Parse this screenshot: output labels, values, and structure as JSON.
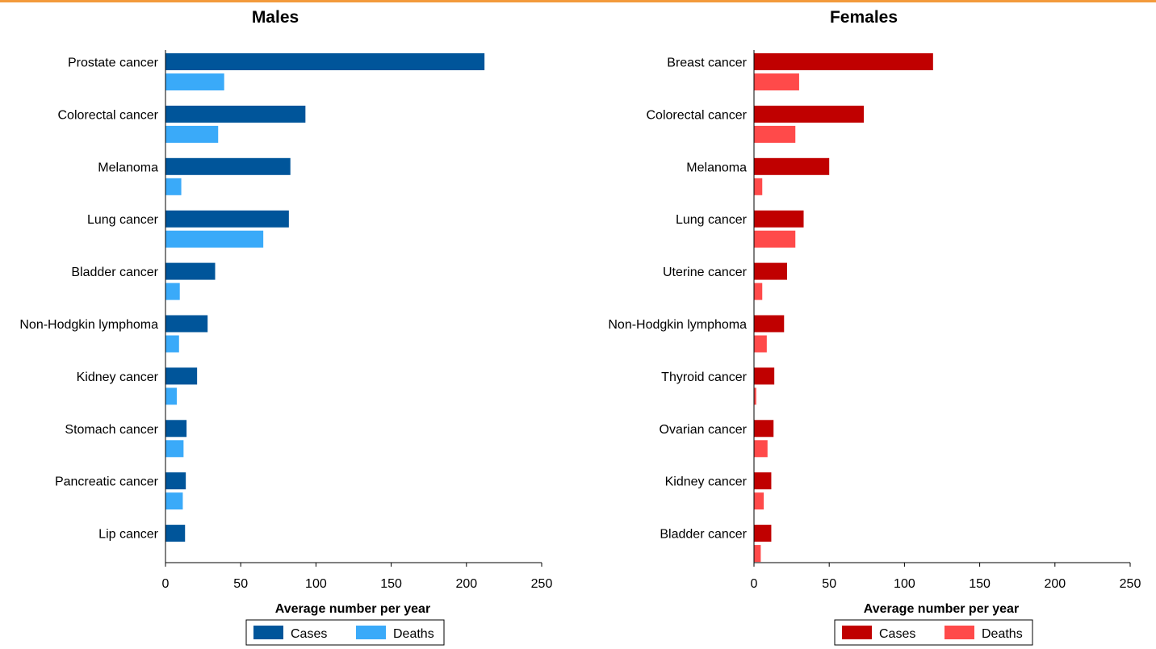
{
  "chart_data": [
    {
      "type": "bar",
      "orientation": "horizontal",
      "title": "Males",
      "xlabel": "Average number per year",
      "ylabel": "",
      "xlim": [
        0,
        250
      ],
      "xticks": [
        0,
        50,
        100,
        150,
        200,
        250
      ],
      "grid": false,
      "legend_position": "bottom",
      "categories": [
        "Prostate cancer",
        "Colorectal cancer",
        "Melanoma",
        "Lung cancer",
        "Bladder cancer",
        "Non-Hodgkin lymphoma",
        "Kidney cancer",
        "Stomach cancer",
        "Pancreatic cancer",
        "Lip cancer"
      ],
      "series": [
        {
          "name": "Cases",
          "color": "#00559a",
          "values": [
            212,
            93,
            83,
            82,
            33,
            28,
            21,
            14,
            13.5,
            13
          ]
        },
        {
          "name": "Deaths",
          "color": "#3aaaf9",
          "values": [
            39,
            35,
            10.5,
            65,
            9.5,
            9,
            7.5,
            12,
            11.5,
            0
          ]
        }
      ]
    },
    {
      "type": "bar",
      "orientation": "horizontal",
      "title": "Females",
      "xlabel": "Average number per year",
      "ylabel": "",
      "xlim": [
        0,
        250
      ],
      "xticks": [
        0,
        50,
        100,
        150,
        200,
        250
      ],
      "grid": false,
      "legend_position": "bottom",
      "categories": [
        "Breast cancer",
        "Colorectal cancer",
        "Melanoma",
        "Lung cancer",
        "Uterine cancer",
        "Non-Hodgkin lymphoma",
        "Thyroid cancer",
        "Ovarian cancer",
        "Kidney cancer",
        "Bladder cancer"
      ],
      "series": [
        {
          "name": "Cases",
          "color": "#c00000",
          "values": [
            119,
            73,
            50,
            33,
            22,
            20,
            13.5,
            13,
            11.5,
            11.5
          ]
        },
        {
          "name": "Deaths",
          "color": "#ff4a4a",
          "values": [
            30,
            27.5,
            5.5,
            27.5,
            5.5,
            8.5,
            1.5,
            9,
            6.5,
            4.5
          ]
        }
      ]
    }
  ]
}
